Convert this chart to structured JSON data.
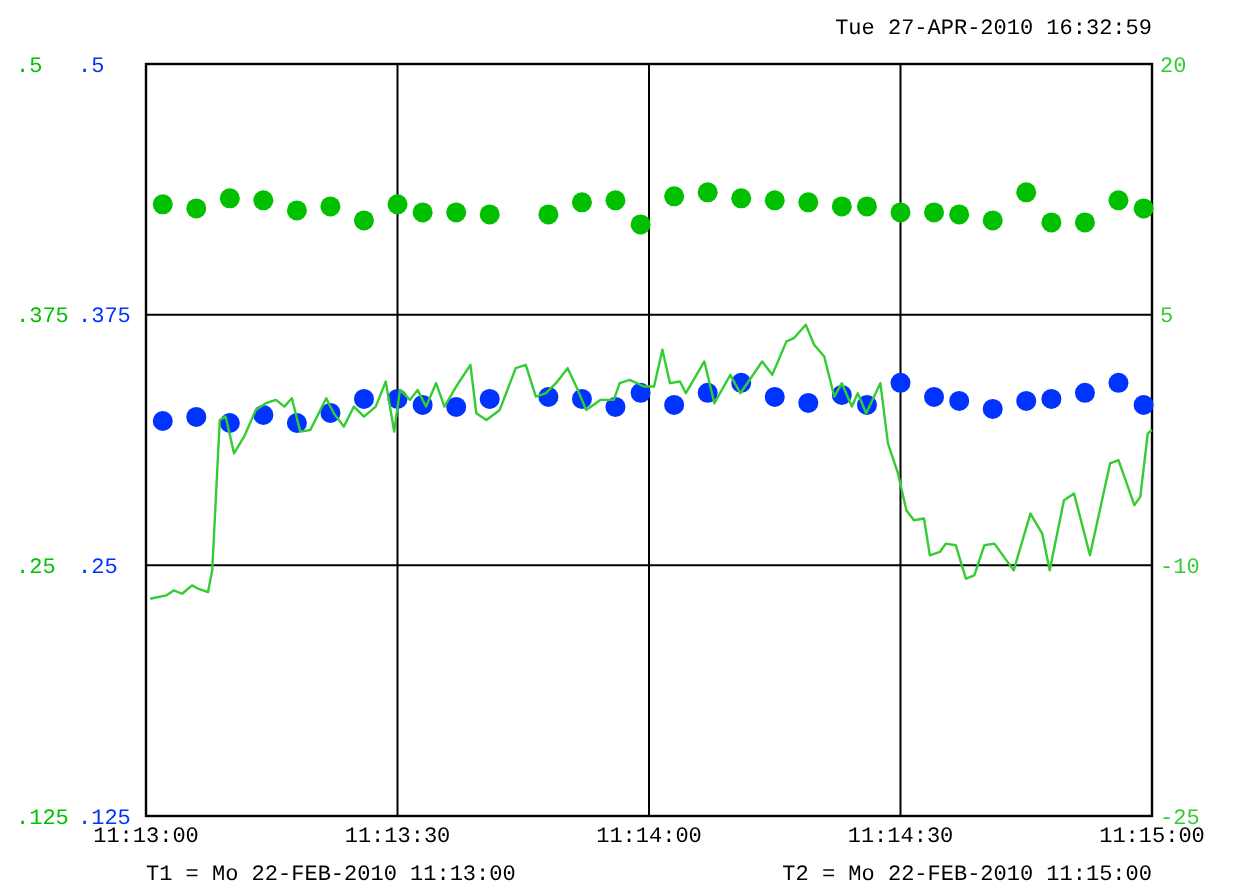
{
  "chart_data": {
    "type": "scatter",
    "annotations": [
      "Tue 27-APR-2010 16:32:59",
      "T1 = Mo 22-FEB-2010 11:13:00",
      "T2 = Mo 22-FEB-2010 11:15:00"
    ],
    "x": [
      "2010-02-22T11:13:02",
      "2010-02-22T11:13:06",
      "2010-02-22T11:13:10",
      "2010-02-22T11:13:14",
      "2010-02-22T11:13:18",
      "2010-02-22T11:13:22",
      "2010-02-22T11:13:26",
      "2010-02-22T11:13:30",
      "2010-02-22T11:13:33",
      "2010-02-22T11:13:37",
      "2010-02-22T11:13:41",
      "2010-02-22T11:13:48",
      "2010-02-22T11:13:52",
      "2010-02-22T11:13:56",
      "2010-02-22T11:13:59",
      "2010-02-22T11:14:03",
      "2010-02-22T11:14:07",
      "2010-02-22T11:14:11",
      "2010-02-22T11:14:15",
      "2010-02-22T11:14:19",
      "2010-02-22T11:14:23",
      "2010-02-22T11:14:26",
      "2010-02-22T11:14:30",
      "2010-02-22T11:14:34",
      "2010-02-22T11:14:37",
      "2010-02-22T11:14:41",
      "2010-02-22T11:14:45",
      "2010-02-22T11:14:48",
      "2010-02-22T11:14:52",
      "2010-02-22T11:14:56",
      "2010-02-22T11:14:59"
    ],
    "series": [
      {
        "marker": "circle",
        "color": "#0033ff",
        "values": [
          0.322,
          0.324,
          0.321,
          0.325,
          0.321,
          0.326,
          0.333,
          0.333,
          0.33,
          0.329,
          0.333,
          0.334,
          0.333,
          0.329,
          0.336,
          0.33,
          0.336,
          0.341,
          0.334,
          0.331,
          0.335,
          0.33,
          0.341,
          0.334,
          0.332,
          0.328,
          0.332,
          0.333,
          0.336,
          0.341,
          0.33
        ]
      },
      {
        "marker": "circle",
        "axis": "y2",
        "color": "#00c000",
        "values": [
          0.43,
          0.428,
          0.433,
          0.432,
          0.427,
          0.429,
          0.422,
          0.43,
          0.426,
          0.426,
          0.425,
          0.425,
          0.431,
          0.432,
          0.42,
          0.434,
          0.436,
          0.433,
          0.432,
          0.431,
          0.429,
          0.429,
          0.426,
          0.426,
          0.425,
          0.422,
          0.436,
          0.421,
          0.421,
          0.432,
          0.428
        ]
      },
      {
        "type": "line",
        "marker": "none",
        "axis": "y3",
        "color": "#33cc33",
        "x": [
          "2010-02-22T11:13:00.5",
          "2010-02-22T11:13:02.4",
          "2010-02-22T11:13:03.3",
          "2010-02-22T11:13:04.3",
          "2010-02-22T11:13:05.5",
          "2010-02-22T11:13:06.2",
          "2010-02-22T11:13:07.4",
          "2010-02-22T11:13:07.9",
          "2010-02-22T11:13:08.8",
          "2010-02-22T11:13:09.5",
          "2010-02-22T11:13:10.5",
          "2010-02-22T11:13:11.7",
          "2010-02-22T11:13:13.1",
          "2010-02-22T11:13:14.3",
          "2010-02-22T11:13:15.5",
          "2010-02-22T11:13:16.5",
          "2010-02-22T11:13:17.4",
          "2010-02-22T11:13:18.4",
          "2010-02-22T11:13:19.6",
          "2010-02-22T11:13:21.5",
          "2010-02-22T11:13:22.4",
          "2010-02-22T11:13:23.6",
          "2010-02-22T11:13:24.8",
          "2010-02-22T11:13:26.0",
          "2010-02-22T11:13:27.4",
          "2010-02-22T11:13:28.6",
          "2010-02-22T11:13:29.6",
          "2010-02-22T11:13:30.3",
          "2010-02-22T11:13:31.5",
          "2010-02-22T11:13:32.4",
          "2010-02-22T11:13:33.4",
          "2010-02-22T11:13:34.6",
          "2010-02-22T11:13:35.6",
          "2010-02-22T11:13:37.0",
          "2010-02-22T11:13:38.7",
          "2010-02-22T11:13:39.4",
          "2010-02-22T11:13:40.6",
          "2010-02-22T11:13:42.2",
          "2010-02-22T11:13:44.1",
          "2010-02-22T11:13:45.3",
          "2010-02-22T11:13:46.5",
          "2010-02-22T11:13:47.7",
          "2010-02-22T11:13:48.9",
          "2010-02-22T11:13:50.3",
          "2010-02-22T11:13:51.5",
          "2010-02-22T11:13:52.5",
          "2010-02-22T11:13:54.2",
          "2010-02-22T11:13:55.8",
          "2010-02-22T11:13:56.5",
          "2010-02-22T11:13:57.7",
          "2010-02-22T11:13:59.4",
          "2010-02-22T11:14:00.6",
          "2010-02-22T11:14:01.6",
          "2010-02-22T11:14:02.5",
          "2010-02-22T11:14:03.7",
          "2010-02-22T11:14:04.4",
          "2010-02-22T11:14:06.6",
          "2010-02-22T11:14:07.8",
          "2010-02-22T11:14:09.7",
          "2010-02-22T11:14:10.9",
          "2010-02-22T11:14:13.5",
          "2010-02-22T11:14:14.7",
          "2010-02-22T11:14:16.4",
          "2010-02-22T11:14:17.3",
          "2010-02-22T11:14:18.7",
          "2010-02-22T11:14:19.7",
          "2010-02-22T11:14:20.9",
          "2010-02-22T11:14:22.1",
          "2010-02-22T11:14:23.0",
          "2010-02-22T11:14:24.2",
          "2010-02-22T11:14:24.9",
          "2010-02-22T11:14:25.9",
          "2010-02-22T11:14:27.6",
          "2010-02-22T11:14:28.5",
          "2010-02-22T11:14:29.7",
          "2010-02-22T11:14:30.7",
          "2010-02-22T11:14:31.6",
          "2010-02-22T11:14:32.8",
          "2010-02-22T11:14:33.5",
          "2010-02-22T11:14:34.7",
          "2010-02-22T11:14:35.4",
          "2010-02-22T11:14:36.6",
          "2010-02-22T11:14:37.8",
          "2010-02-22T11:14:38.8",
          "2010-02-22T11:14:40.0",
          "2010-02-22T11:14:41.2",
          "2010-02-22T11:14:43.5",
          "2010-02-22T11:14:45.5",
          "2010-02-22T11:14:46.9",
          "2010-02-22T11:14:47.8",
          "2010-02-22T11:14:49.5",
          "2010-02-22T11:14:50.7",
          "2010-02-22T11:14:52.6",
          "2010-02-22T11:14:55.0",
          "2010-02-22T11:14:56.0",
          "2010-02-22T11:14:57.9",
          "2010-02-22T11:14:58.6",
          "2010-02-22T11:14:59.5",
          "2010-02-22T11:15:00.0"
        ],
        "values": [
          -12.0,
          -11.8,
          -11.5,
          -11.7,
          -11.2,
          -11.4,
          -11.6,
          -10.3,
          -1.3,
          -1.1,
          -3.3,
          -2.3,
          -0.7,
          -0.3,
          -0.1,
          -0.5,
          0.0,
          -2.0,
          -1.9,
          0.0,
          -0.9,
          -1.7,
          -0.5,
          -1.1,
          -0.5,
          1.0,
          -2.0,
          0.5,
          -0.1,
          0.5,
          -0.5,
          0.9,
          -0.5,
          0.7,
          2.0,
          -0.9,
          -1.3,
          -0.7,
          1.8,
          2.0,
          0.1,
          0.3,
          0.9,
          1.8,
          0.5,
          -0.7,
          -0.1,
          -0.1,
          0.9,
          1.1,
          0.7,
          0.7,
          2.9,
          0.9,
          1.0,
          0.3,
          2.2,
          -0.3,
          1.4,
          0.3,
          2.2,
          1.4,
          3.4,
          3.6,
          4.4,
          3.2,
          2.5,
          0.1,
          0.9,
          -0.5,
          0.3,
          -0.9,
          0.9,
          -2.7,
          -4.5,
          -6.7,
          -7.3,
          -7.2,
          -9.4,
          -9.2,
          -8.7,
          -8.8,
          -10.8,
          -10.6,
          -8.8,
          -8.7,
          -10.3,
          -6.9,
          -8.1,
          -10.3,
          -6.1,
          -5.7,
          -9.4,
          -3.9,
          -3.7,
          -6.4,
          -5.9,
          -2.1,
          -1.9
        ]
      }
    ],
    "xlim": [
      "2010-02-22T11:13:00",
      "2010-02-22T11:15:00"
    ],
    "xticks": [
      {
        "value": "2010-02-22T11:13:00",
        "label": "11:13:00"
      },
      {
        "value": "2010-02-22T11:13:30",
        "label": "11:13:30"
      },
      {
        "value": "2010-02-22T11:14:00",
        "label": "11:14:00"
      },
      {
        "value": "2010-02-22T11:14:30",
        "label": "11:14:30"
      },
      {
        "value": "2010-02-22T11:15:00",
        "label": "11:15:00"
      }
    ],
    "ylim": [
      0.125,
      0.5
    ],
    "yticks": [
      {
        "value": 0.125,
        "label": ".125"
      },
      {
        "value": 0.25,
        "label": ".25"
      },
      {
        "value": 0.375,
        "label": ".375"
      },
      {
        "value": 0.5,
        "label": ".5"
      }
    ],
    "y2lim": [
      0.125,
      0.5
    ],
    "y2ticks": [
      {
        "value": 0.125,
        "label": ".125"
      },
      {
        "value": 0.25,
        "label": ".25"
      },
      {
        "value": 0.375,
        "label": ".375"
      },
      {
        "value": 0.5,
        "label": ".5"
      }
    ],
    "y3lim": [
      -25,
      20
    ],
    "y3ticks": [
      -25,
      -10,
      5,
      20
    ],
    "grid": true
  }
}
